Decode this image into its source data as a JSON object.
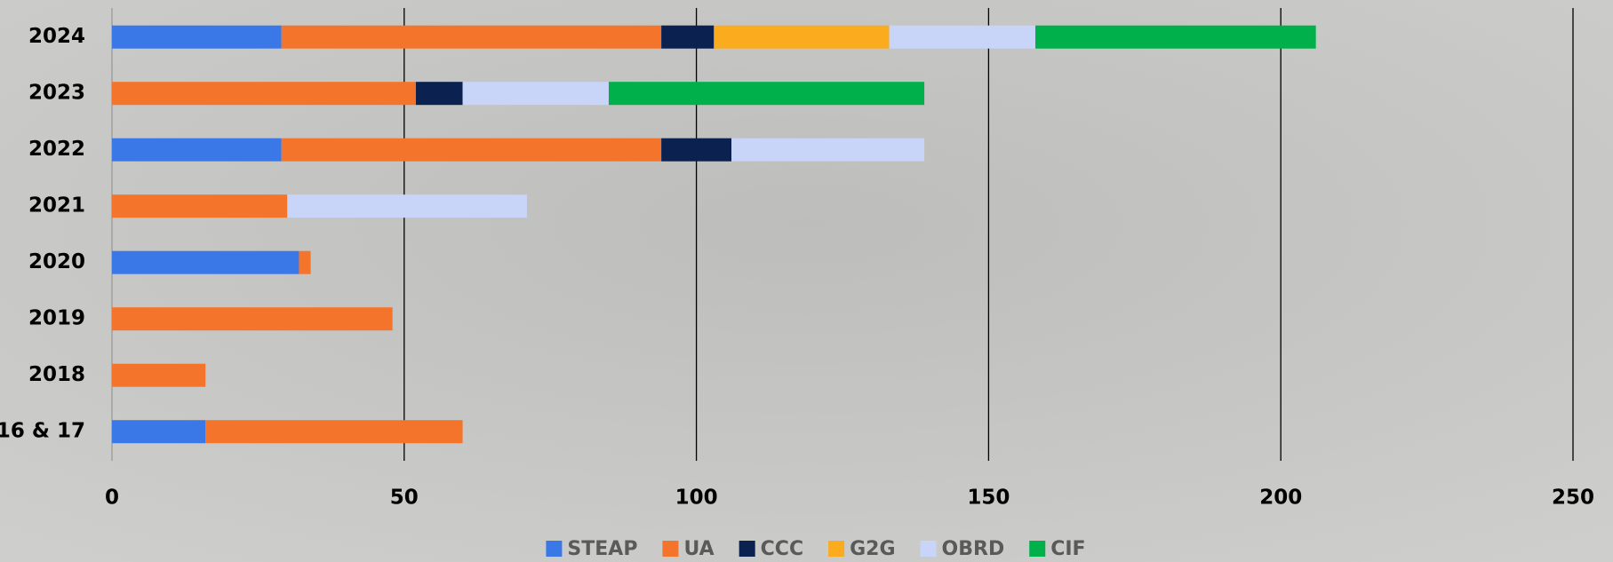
{
  "chart_data": {
    "type": "stacked-bar-horizontal",
    "categories": [
      "2024",
      "2023",
      "2022",
      "2021",
      "2020",
      "2019",
      "2018",
      "16 & 17"
    ],
    "series": [
      {
        "name": "STEAP",
        "color": "#3b78e7",
        "values": [
          29,
          null,
          29,
          null,
          32,
          null,
          null,
          16
        ]
      },
      {
        "name": "UA",
        "color": "#f4742b",
        "values": [
          65,
          52,
          65,
          30,
          2,
          48,
          16,
          44
        ]
      },
      {
        "name": "CCC",
        "color": "#0b2150",
        "values": [
          9,
          8,
          12,
          null,
          null,
          null,
          null,
          null
        ]
      },
      {
        "name": "G2G",
        "color": "#fbab1e",
        "values": [
          30,
          null,
          null,
          null,
          null,
          null,
          null,
          null
        ]
      },
      {
        "name": "OBRD",
        "color": "#c9d5f8",
        "values": [
          25,
          25,
          33,
          41,
          null,
          null,
          null,
          null
        ]
      },
      {
        "name": "CIF",
        "color": "#00b04a",
        "values": [
          48,
          54,
          null,
          null,
          null,
          null,
          null,
          null
        ]
      }
    ],
    "xlim": [
      0,
      250
    ],
    "xticks": [
      0,
      50,
      100,
      150,
      200,
      250
    ],
    "grid": true,
    "legend": "bottom"
  }
}
